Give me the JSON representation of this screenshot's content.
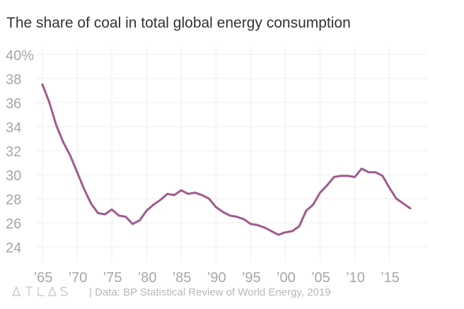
{
  "chart_data": {
    "type": "line",
    "title": "The share of coal in total global energy consumption",
    "xlabel": "",
    "ylabel": "",
    "xlim": [
      1965,
      2018
    ],
    "ylim": [
      24,
      40
    ],
    "x_ticks": [
      {
        "value": 1965,
        "label": "’65"
      },
      {
        "value": 1970,
        "label": "’70"
      },
      {
        "value": 1975,
        "label": "’75"
      },
      {
        "value": 1980,
        "label": "’80"
      },
      {
        "value": 1985,
        "label": "’85"
      },
      {
        "value": 1990,
        "label": "’90"
      },
      {
        "value": 1995,
        "label": "’95"
      },
      {
        "value": 2000,
        "label": "’00"
      },
      {
        "value": 2005,
        "label": "’05"
      },
      {
        "value": 2010,
        "label": "’10"
      },
      {
        "value": 2015,
        "label": "’15"
      }
    ],
    "y_ticks": [
      {
        "value": 40,
        "label": "40%"
      },
      {
        "value": 38,
        "label": "38"
      },
      {
        "value": 36,
        "label": "36"
      },
      {
        "value": 34,
        "label": "34"
      },
      {
        "value": 32,
        "label": "32"
      },
      {
        "value": 30,
        "label": "30"
      },
      {
        "value": 28,
        "label": "28"
      },
      {
        "value": 26,
        "label": "26"
      },
      {
        "value": 24,
        "label": "24"
      }
    ],
    "grid": true,
    "series": [
      {
        "color": "#a05a8c",
        "x": [
          1965,
          1966,
          1967,
          1968,
          1969,
          1970,
          1971,
          1972,
          1973,
          1974,
          1975,
          1976,
          1977,
          1978,
          1979,
          1980,
          1981,
          1982,
          1983,
          1984,
          1985,
          1986,
          1987,
          1988,
          1989,
          1990,
          1991,
          1992,
          1993,
          1994,
          1995,
          1996,
          1997,
          1998,
          1999,
          2000,
          2001,
          2002,
          2003,
          2004,
          2005,
          2006,
          2007,
          2008,
          2009,
          2010,
          2011,
          2012,
          2013,
          2014,
          2015,
          2016,
          2017,
          2018
        ],
        "values": [
          37.5,
          36.0,
          34.1,
          32.7,
          31.6,
          30.2,
          28.8,
          27.6,
          26.8,
          26.7,
          27.1,
          26.6,
          26.5,
          25.9,
          26.2,
          27.0,
          27.5,
          27.9,
          28.4,
          28.3,
          28.7,
          28.4,
          28.5,
          28.3,
          28.0,
          27.3,
          26.9,
          26.6,
          26.5,
          26.3,
          25.9,
          25.8,
          25.6,
          25.3,
          25.0,
          25.2,
          25.3,
          25.7,
          27.0,
          27.5,
          28.5,
          29.1,
          29.8,
          29.9,
          29.9,
          29.8,
          30.5,
          30.2,
          30.2,
          29.9,
          28.9,
          28.0,
          27.6,
          27.2
        ]
      }
    ]
  },
  "footer": {
    "logo_text": "ATLAS",
    "source": "| Data: BP Statistical Review of World Energy, 2019"
  }
}
